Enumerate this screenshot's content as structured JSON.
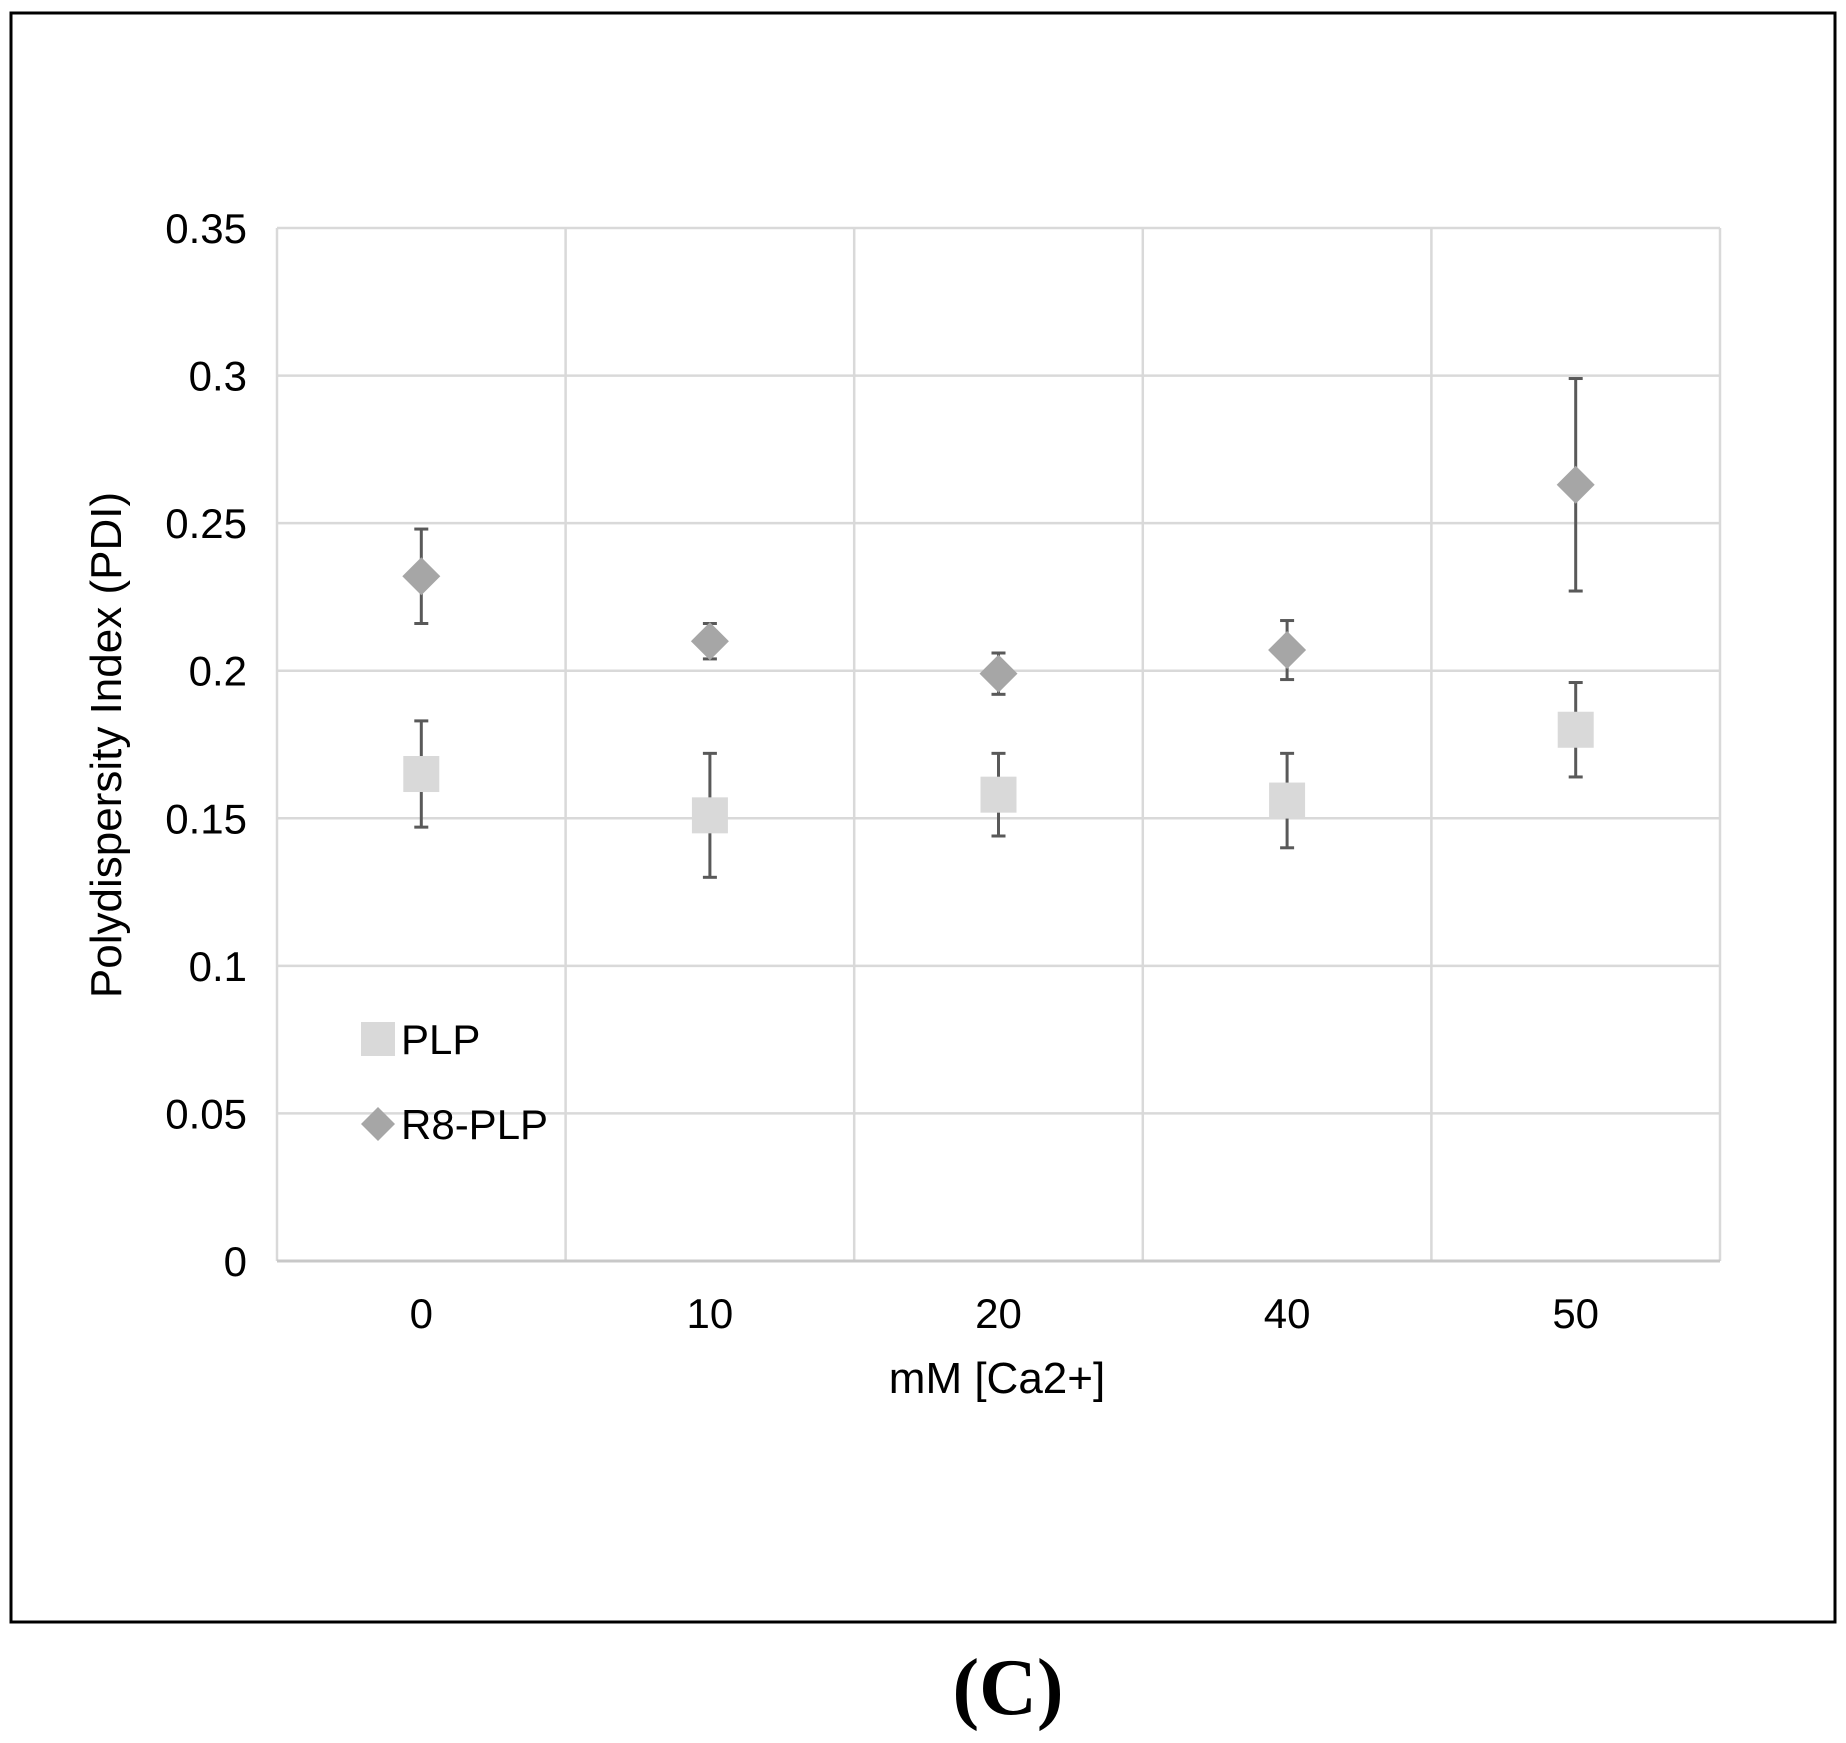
{
  "figure": {
    "panel_label": "(C)"
  },
  "chart_data": {
    "type": "scatter",
    "title": "",
    "xlabel": "mM [Ca2+]",
    "ylabel": "Polydispersity Index (PDI)",
    "categories": [
      "0",
      "10",
      "20",
      "40",
      "50"
    ],
    "ylim": [
      0,
      0.35
    ],
    "yticks": [
      "0",
      "0.05",
      "0.1",
      "0.15",
      "0.2",
      "0.25",
      "0.3",
      "0.35"
    ],
    "grid": true,
    "legend_position": "bottom-left",
    "series": [
      {
        "name": "PLP",
        "marker": "square",
        "color": "#d9d9d9",
        "values": [
          0.165,
          0.151,
          0.158,
          0.156,
          0.18
        ],
        "error": [
          0.018,
          0.021,
          0.014,
          0.016,
          0.016
        ]
      },
      {
        "name": "R8-PLP",
        "marker": "diamond",
        "color": "#a6a6a6",
        "values": [
          0.232,
          0.21,
          0.199,
          0.207,
          0.263
        ],
        "error": [
          0.016,
          0.006,
          0.007,
          0.01,
          0.036
        ]
      }
    ],
    "errorbar_color": "#595959",
    "grid_color": "#d9d9d9"
  }
}
